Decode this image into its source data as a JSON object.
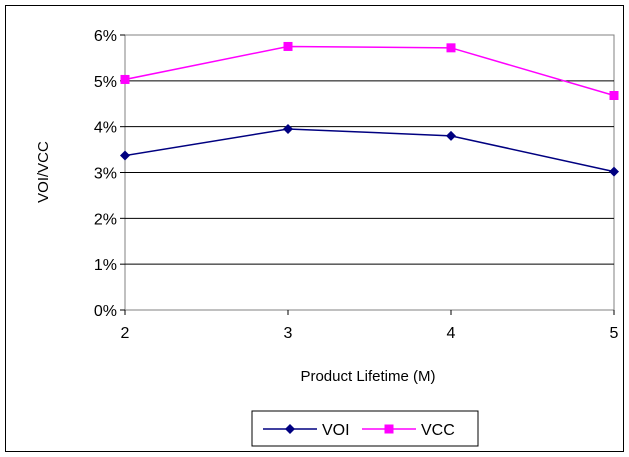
{
  "chart_data": {
    "type": "line",
    "x": [
      2,
      3,
      4,
      5
    ],
    "xlabel": "Product Lifetime (M)",
    "ylabel": "VOI/VCC",
    "ylim": [
      0,
      6
    ],
    "yticks": [
      "0%",
      "1%",
      "2%",
      "3%",
      "4%",
      "5%",
      "6%"
    ],
    "xticks": [
      "2",
      "3",
      "4",
      "5"
    ],
    "grid": true,
    "legend_position": "bottom",
    "series": [
      {
        "name": "VOI",
        "values": [
          3.37,
          3.95,
          3.8,
          3.02
        ],
        "color": "#000080",
        "marker": "diamond"
      },
      {
        "name": "VCC",
        "values": [
          5.03,
          5.75,
          5.72,
          4.68
        ],
        "color": "#FF00FF",
        "marker": "square"
      }
    ]
  }
}
